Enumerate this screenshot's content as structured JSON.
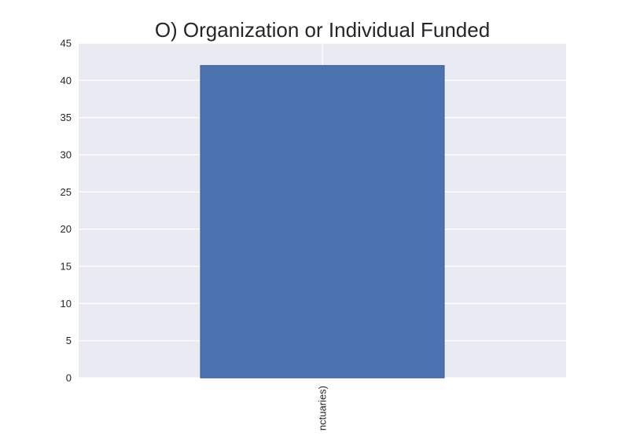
{
  "chart_data": {
    "type": "bar",
    "title": "O) Organization or Individual Funded",
    "xlabel": "",
    "ylabel": "",
    "categories": [
      "nctuaries)"
    ],
    "values": [
      42
    ],
    "ylim": [
      0,
      45
    ],
    "yticks": [
      0,
      5,
      10,
      15,
      20,
      25,
      30,
      35,
      40,
      45
    ],
    "grid": true,
    "legend": "none",
    "colors": {
      "plot_background": "#eaeaf2",
      "grid": "#ffffff",
      "bar_fill": "#4c72b0",
      "bar_edge": "#3a5a8c",
      "text": "#262626"
    }
  }
}
